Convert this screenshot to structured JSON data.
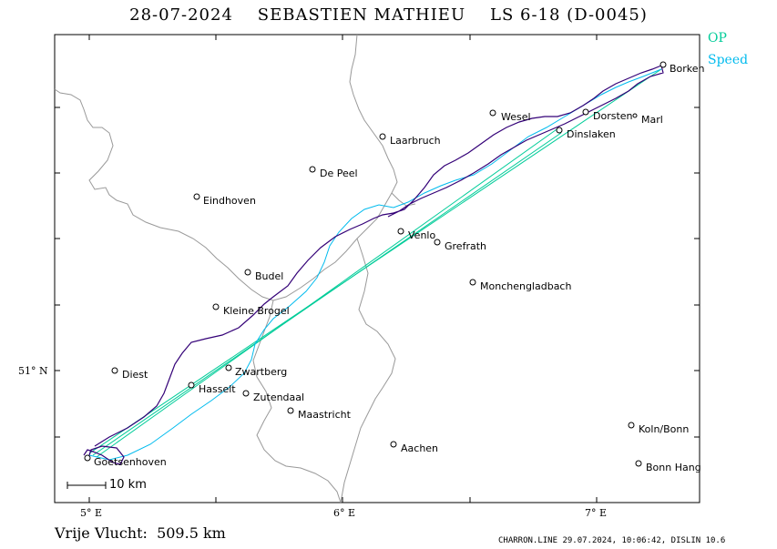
{
  "header": {
    "title": "28-07-2024    SEBASTIEN MATHIEU    LS 6-18 (D-0045)"
  },
  "legend": {
    "op_label": "OP",
    "speed_label": "Speed",
    "op_color": "#00cc99",
    "speed_color": "#00bbee",
    "track_color": "#330077"
  },
  "axes": {
    "x_ticks": [
      {
        "label": "5° E",
        "value": 5
      },
      {
        "label": "6° E",
        "value": 6
      },
      {
        "label": "7° E",
        "value": 7
      }
    ],
    "y_ticks": [
      {
        "label": "51° N",
        "value": 51
      }
    ]
  },
  "places": [
    {
      "name": "Borken"
    },
    {
      "name": "Wesel"
    },
    {
      "name": "Dorsten"
    },
    {
      "name": "Marl"
    },
    {
      "name": "Laarbruch"
    },
    {
      "name": "Dinslaken"
    },
    {
      "name": "De Peel"
    },
    {
      "name": "Eindhoven"
    },
    {
      "name": "Venlo"
    },
    {
      "name": "Grefrath"
    },
    {
      "name": "Budel"
    },
    {
      "name": "Monchengladbach"
    },
    {
      "name": "Kleine Brogel"
    },
    {
      "name": "Diest"
    },
    {
      "name": "Zwartberg"
    },
    {
      "name": "Hasselt"
    },
    {
      "name": "Zutendaal"
    },
    {
      "name": "Maastricht"
    },
    {
      "name": "Koln/Bonn"
    },
    {
      "name": "Aachen"
    },
    {
      "name": "Goetsenhoven"
    },
    {
      "name": "Bonn Hang"
    }
  ],
  "scale": {
    "label": "10 km"
  },
  "flight": {
    "distance_text": "Vrije Vlucht:  509.5 km"
  },
  "footer": {
    "text": "CHARRON.LINE 29.07.2024, 10:06:42, DISLIN 10.6"
  }
}
